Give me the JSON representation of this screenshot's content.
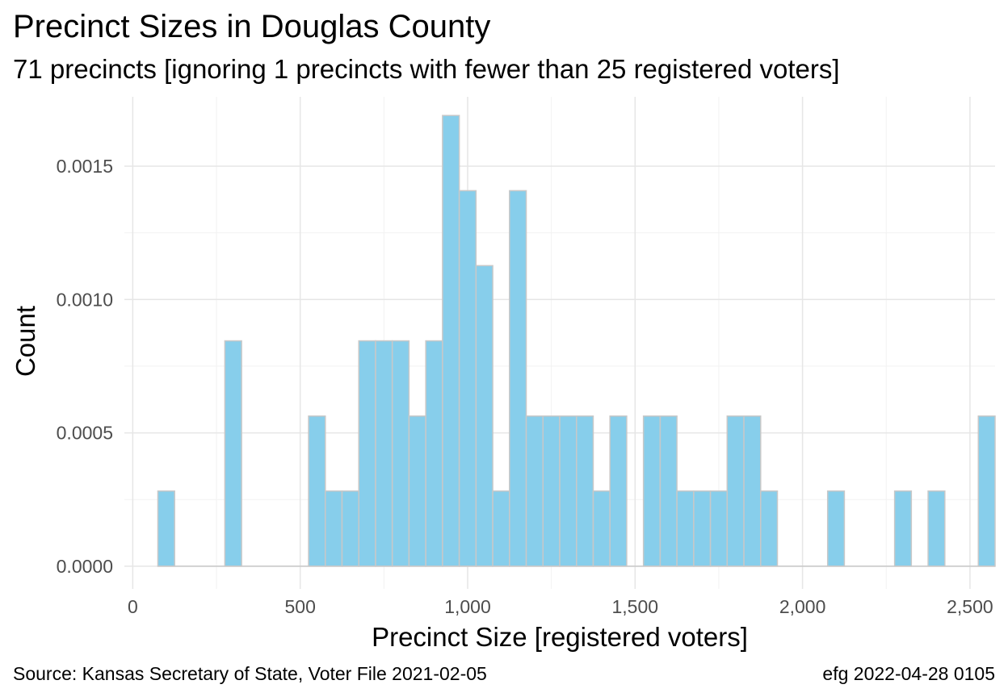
{
  "header": {
    "title": "Precinct Sizes in Douglas County",
    "subtitle": "71 precincts [ignoring 1 precincts with fewer than 25 registered voters]"
  },
  "footer": {
    "source": "Source:  Kansas Secretary of State, Voter File  2021-02-05",
    "stamp": "efg 2022-04-28 0105"
  },
  "chart_data": {
    "type": "bar",
    "xlabel": "Precinct Size [registered voters]",
    "ylabel": "Count",
    "xlim": [
      -25,
      2575
    ],
    "ylim": [
      -8.5e-05,
      0.00176
    ],
    "x_ticks": [
      0,
      500,
      1000,
      1500,
      2000,
      2500
    ],
    "x_tick_labels": [
      "0",
      "500",
      "1,000",
      "1,500",
      "2,000",
      "2,500"
    ],
    "y_ticks": [
      0.0,
      0.0005,
      0.001,
      0.0015
    ],
    "y_tick_labels": [
      "0.0000",
      "0.0005",
      "0.0010",
      "0.0015"
    ],
    "grid": true,
    "bin_width": 50,
    "bar_color": "#87ceeb",
    "bar_edge_color": "#c8c8c8",
    "bins": [
      {
        "x0": 75,
        "x1": 125,
        "density": 0.000282
      },
      {
        "x0": 275,
        "x1": 325,
        "density": 0.000845
      },
      {
        "x0": 525,
        "x1": 575,
        "density": 0.000563
      },
      {
        "x0": 575,
        "x1": 625,
        "density": 0.000282
      },
      {
        "x0": 625,
        "x1": 675,
        "density": 0.000282
      },
      {
        "x0": 675,
        "x1": 725,
        "density": 0.000845
      },
      {
        "x0": 725,
        "x1": 775,
        "density": 0.000845
      },
      {
        "x0": 775,
        "x1": 825,
        "density": 0.000845
      },
      {
        "x0": 825,
        "x1": 875,
        "density": 0.000563
      },
      {
        "x0": 875,
        "x1": 925,
        "density": 0.000845
      },
      {
        "x0": 925,
        "x1": 975,
        "density": 0.00169
      },
      {
        "x0": 975,
        "x1": 1025,
        "density": 0.001408
      },
      {
        "x0": 1025,
        "x1": 1075,
        "density": 0.001127
      },
      {
        "x0": 1075,
        "x1": 1125,
        "density": 0.000282
      },
      {
        "x0": 1125,
        "x1": 1175,
        "density": 0.001408
      },
      {
        "x0": 1175,
        "x1": 1225,
        "density": 0.000563
      },
      {
        "x0": 1225,
        "x1": 1275,
        "density": 0.000563
      },
      {
        "x0": 1275,
        "x1": 1325,
        "density": 0.000563
      },
      {
        "x0": 1325,
        "x1": 1375,
        "density": 0.000563
      },
      {
        "x0": 1375,
        "x1": 1425,
        "density": 0.000282
      },
      {
        "x0": 1425,
        "x1": 1475,
        "density": 0.000563
      },
      {
        "x0": 1525,
        "x1": 1575,
        "density": 0.000563
      },
      {
        "x0": 1575,
        "x1": 1625,
        "density": 0.000563
      },
      {
        "x0": 1625,
        "x1": 1675,
        "density": 0.000282
      },
      {
        "x0": 1675,
        "x1": 1725,
        "density": 0.000282
      },
      {
        "x0": 1725,
        "x1": 1775,
        "density": 0.000282
      },
      {
        "x0": 1775,
        "x1": 1825,
        "density": 0.000563
      },
      {
        "x0": 1825,
        "x1": 1875,
        "density": 0.000563
      },
      {
        "x0": 1875,
        "x1": 1925,
        "density": 0.000282
      },
      {
        "x0": 2075,
        "x1": 2125,
        "density": 0.000282
      },
      {
        "x0": 2275,
        "x1": 2325,
        "density": 0.000282
      },
      {
        "x0": 2375,
        "x1": 2425,
        "density": 0.000282
      },
      {
        "x0": 2525,
        "x1": 2575,
        "density": 0.000563
      }
    ]
  }
}
